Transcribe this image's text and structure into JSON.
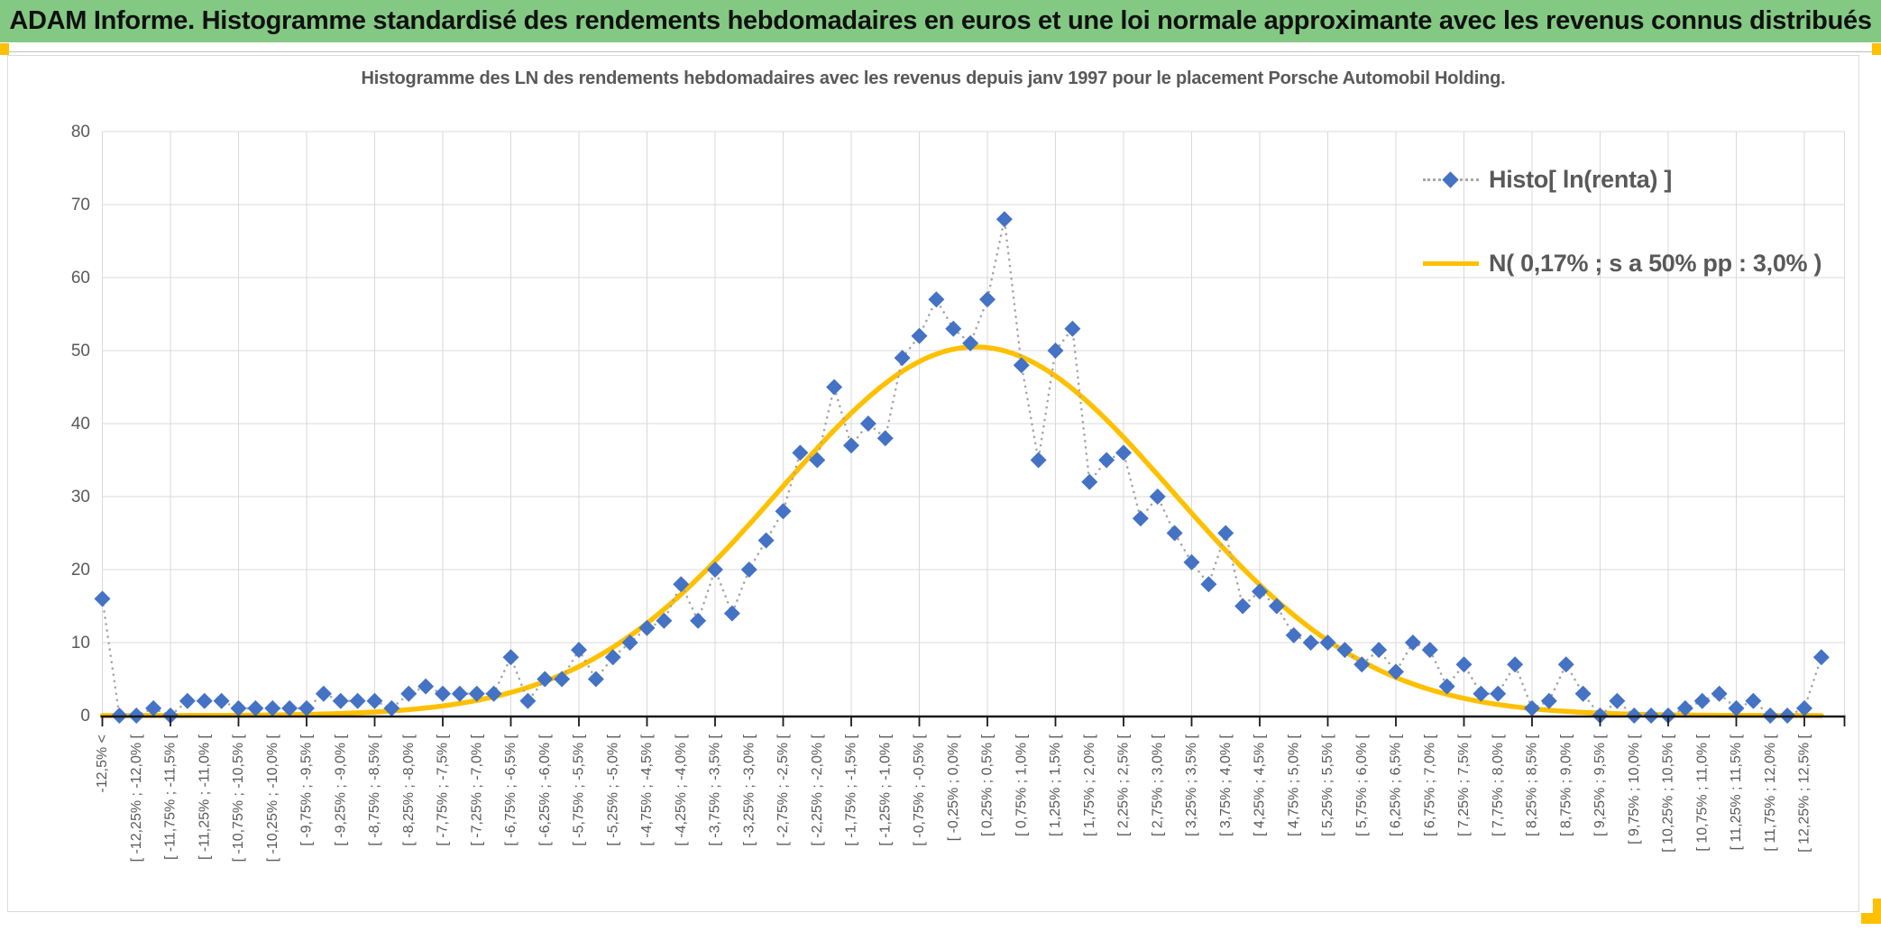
{
  "banner": {
    "text": "ADAM Informe. Histogramme standardisé des rendements hebdomadaires en euros et une loi normale approximante avec les revenus connus distribués"
  },
  "chart": {
    "title": "Histogramme des LN des rendements hebdomadaires avec les revenus depuis janv 1997 pour le placement Porsche Automobil Holding.",
    "legend": [
      {
        "label": "Histo[ ln(renta) ]",
        "marker": "blue-diamond-on-dotted-gray-line"
      },
      {
        "label": "N( 0,17% ; s a 50% pp : 3,0% )",
        "marker": "solid-orange-line"
      }
    ]
  },
  "colors": {
    "banner_green": "#83C983",
    "histogram_blue": "#4472C4",
    "normal_orange": "#FFC000",
    "connector_gray": "#A6A6A6",
    "gridline_gray": "#D9D9D9",
    "axis_black": "#1a1a1a",
    "label_gray": "#595959",
    "accent_cell_orange": "#FFC000"
  },
  "chart_data": {
    "type": "line",
    "subtype": "histogram frequencies as diamond markers with dotted connector, plus fitted normal curve",
    "bin_width_pct": 0.25,
    "x_range_pct": [
      -12.5,
      12.5
    ],
    "n_points": 102,
    "series": [
      {
        "name": "Histo[ ln(renta) ]",
        "marker": "diamond",
        "color": "#4472C4",
        "connector": "dotted",
        "values": [
          16,
          0,
          0,
          1,
          0,
          2,
          2,
          2,
          1,
          1,
          1,
          1,
          1,
          3,
          2,
          2,
          2,
          1,
          3,
          4,
          3,
          3,
          3,
          3,
          8,
          2,
          5,
          5,
          9,
          5,
          8,
          10,
          12,
          13,
          18,
          13,
          20,
          14,
          20,
          24,
          28,
          36,
          35,
          45,
          37,
          40,
          38,
          49,
          52,
          57,
          53,
          51,
          57,
          68,
          48,
          35,
          50,
          53,
          32,
          35,
          36,
          27,
          30,
          25,
          21,
          18,
          25,
          15,
          17,
          15,
          11,
          10,
          10,
          9,
          7,
          9,
          6,
          10,
          9,
          4,
          7,
          3,
          3,
          7,
          1,
          2,
          7,
          3,
          0,
          2,
          0,
          0,
          0,
          1,
          2,
          3,
          1,
          2,
          0,
          0,
          1,
          8
        ]
      },
      {
        "name": "N( 0,17% ; s a 50% pp : 3,0% )",
        "color": "#FFC000",
        "curve": "normal",
        "mean_pct": 0.17,
        "sd_pct_label": "3,0%",
        "draw_params": {
          "amplitude": 50.5,
          "mean_pct": 0.2,
          "sd_pct": 2.9
        }
      }
    ],
    "x_axis": {
      "label_every_n_bins": 2,
      "tick_every_n_bins": 4,
      "labels": [
        "-12,5% <",
        "[ -12,25% ; -12,0% [",
        "[ -11,75% ; -11,5% [",
        "[ -11,25% ; -11,0% [",
        "[ -10,75% ; -10,5% [",
        "[ -10,25% ; -10,0% [",
        "[ -9,75% ; -9,5% [",
        "[ -9,25% ; -9,0% [",
        "[ -8,75% ; -8,5% [",
        "[ -8,25% ; -8,0% [",
        "[ -7,75% ; -7,5% [",
        "[ -7,25% ; -7,0% [",
        "[ -6,75% ; -6,5% [",
        "[ -6,25% ; -6,0% [",
        "[ -5,75% ; -5,5% [",
        "[ -5,25% ; -5,0% [",
        "[ -4,75% ; -4,5% [",
        "[ -4,25% ; -4,0% [",
        "[ -3,75% ; -3,5% [",
        "[ -3,25% ; -3,0% [",
        "[ -2,75% ; -2,5% [",
        "[ -2,25% ; -2,0% [",
        "[ -1,75% ; -1,5% [",
        "[ -1,25% ; -1,0% [",
        "[ -0,75% ; -0,5% [",
        "[ -0,25% ; 0,0% [",
        "[ 0,25% ; 0,5% [",
        "[ 0,75% ; 1,0% [",
        "[ 1,25% ; 1,5% [",
        "[ 1,75% ; 2,0% [",
        "[ 2,25% ; 2,5% [",
        "[ 2,75% ; 3,0% [",
        "[ 3,25% ; 3,5% [",
        "[ 3,75% ; 4,0% [",
        "[ 4,25% ; 4,5% [",
        "[ 4,75% ; 5,0% [",
        "[ 5,25% ; 5,5% [",
        "[ 5,75% ; 6,0% [",
        "[ 6,25% ; 6,5% [",
        "[ 6,75% ; 7,0% [",
        "[ 7,25% ; 7,5% [",
        "[ 7,75% ; 8,0% [",
        "[ 8,25% ; 8,5% [",
        "[ 8,75% ; 9,0% [",
        "[ 9,25% ; 9,5% [",
        "[ 9,75% ; 10,0% [",
        "[ 10,25% ; 10,5% [",
        "[ 10,75% ; 11,0% [",
        "[ 11,25% ; 11,5% [",
        "[ 11,75% ; 12,0% [",
        "[ 12,25% ; 12,5% ["
      ]
    },
    "y_axis": {
      "min": 0,
      "max": 80,
      "step": 10,
      "ticks": [
        "0",
        "10",
        "20",
        "30",
        "40",
        "50",
        "60",
        "70",
        "80"
      ]
    },
    "grid": true,
    "legend_position": "top-right inside plot"
  }
}
